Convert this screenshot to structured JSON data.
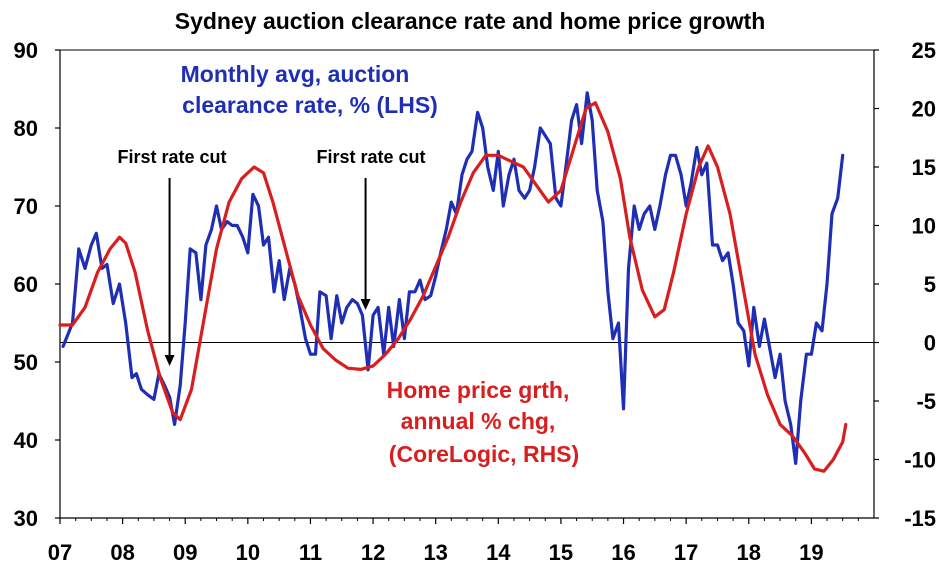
{
  "chart_data": {
    "type": "line",
    "title": "Sydney auction clearance rate and home price growth",
    "x_ticks": [
      "07",
      "08",
      "09",
      "10",
      "11",
      "12",
      "13",
      "14",
      "15",
      "16",
      "17",
      "18",
      "19"
    ],
    "y_left": {
      "lim": [
        30,
        90
      ],
      "ticks": [
        30,
        40,
        50,
        60,
        70,
        80,
        90
      ]
    },
    "y_right": {
      "lim": [
        -15,
        25
      ],
      "ticks": [
        "-15",
        "-10",
        "-5",
        "0",
        "5",
        "10",
        "15",
        "20",
        "25"
      ]
    },
    "reference_line_right_axis": 0,
    "series": [
      {
        "name": "Monthly avg, auction clearance rate, % (LHS)",
        "axis": "left",
        "color": "#1f2fb5",
        "points": [
          [
            2007.05,
            52
          ],
          [
            2007.2,
            55
          ],
          [
            2007.3,
            64.5
          ],
          [
            2007.4,
            62
          ],
          [
            2007.5,
            65
          ],
          [
            2007.58,
            66.5
          ],
          [
            2007.67,
            62
          ],
          [
            2007.75,
            62.5
          ],
          [
            2007.85,
            57.5
          ],
          [
            2007.95,
            60
          ],
          [
            2008.05,
            55
          ],
          [
            2008.15,
            48
          ],
          [
            2008.22,
            48.5
          ],
          [
            2008.3,
            46.5
          ],
          [
            2008.4,
            45.8
          ],
          [
            2008.5,
            45.2
          ],
          [
            2008.58,
            48.5
          ],
          [
            2008.67,
            47
          ],
          [
            2008.75,
            45.5
          ],
          [
            2008.83,
            42
          ],
          [
            2008.92,
            47
          ],
          [
            2009.0,
            55
          ],
          [
            2009.08,
            64.5
          ],
          [
            2009.17,
            64
          ],
          [
            2009.25,
            58
          ],
          [
            2009.33,
            65
          ],
          [
            2009.42,
            67
          ],
          [
            2009.5,
            70
          ],
          [
            2009.58,
            67
          ],
          [
            2009.67,
            68
          ],
          [
            2009.75,
            67.5
          ],
          [
            2009.83,
            67.5
          ],
          [
            2009.92,
            66
          ],
          [
            2010.0,
            64
          ],
          [
            2010.08,
            71.5
          ],
          [
            2010.17,
            70
          ],
          [
            2010.25,
            65
          ],
          [
            2010.33,
            66
          ],
          [
            2010.42,
            59
          ],
          [
            2010.5,
            63
          ],
          [
            2010.58,
            58
          ],
          [
            2010.67,
            62
          ],
          [
            2010.75,
            60
          ],
          [
            2010.83,
            57
          ],
          [
            2010.92,
            53
          ],
          [
            2011.0,
            51
          ],
          [
            2011.08,
            51
          ],
          [
            2011.15,
            59
          ],
          [
            2011.25,
            58.5
          ],
          [
            2011.33,
            53
          ],
          [
            2011.42,
            58.5
          ],
          [
            2011.5,
            55
          ],
          [
            2011.58,
            57
          ],
          [
            2011.67,
            58
          ],
          [
            2011.75,
            57.5
          ],
          [
            2011.83,
            56
          ],
          [
            2011.92,
            49
          ],
          [
            2012.0,
            56
          ],
          [
            2012.08,
            57
          ],
          [
            2012.17,
            51
          ],
          [
            2012.25,
            57
          ],
          [
            2012.33,
            52
          ],
          [
            2012.42,
            58
          ],
          [
            2012.5,
            53
          ],
          [
            2012.58,
            59
          ],
          [
            2012.67,
            59
          ],
          [
            2012.75,
            60.5
          ],
          [
            2012.83,
            58
          ],
          [
            2012.92,
            58.5
          ],
          [
            2013.0,
            61
          ],
          [
            2013.08,
            64
          ],
          [
            2013.17,
            67
          ],
          [
            2013.25,
            70.5
          ],
          [
            2013.33,
            69
          ],
          [
            2013.42,
            74
          ],
          [
            2013.5,
            76
          ],
          [
            2013.58,
            77
          ],
          [
            2013.67,
            82
          ],
          [
            2013.75,
            80
          ],
          [
            2013.83,
            75
          ],
          [
            2013.92,
            72
          ],
          [
            2014.0,
            77
          ],
          [
            2014.08,
            70
          ],
          [
            2014.17,
            74
          ],
          [
            2014.25,
            76
          ],
          [
            2014.33,
            72
          ],
          [
            2014.42,
            71
          ],
          [
            2014.5,
            72
          ],
          [
            2014.58,
            75
          ],
          [
            2014.67,
            80
          ],
          [
            2014.75,
            79
          ],
          [
            2014.83,
            78
          ],
          [
            2014.92,
            71
          ],
          [
            2015.0,
            70
          ],
          [
            2015.08,
            75
          ],
          [
            2015.17,
            81
          ],
          [
            2015.25,
            83
          ],
          [
            2015.33,
            78
          ],
          [
            2015.42,
            84.5
          ],
          [
            2015.5,
            81
          ],
          [
            2015.58,
            72
          ],
          [
            2015.67,
            68
          ],
          [
            2015.75,
            59
          ],
          [
            2015.83,
            53
          ],
          [
            2015.92,
            55
          ],
          [
            2016.0,
            44
          ],
          [
            2016.08,
            62
          ],
          [
            2016.17,
            70
          ],
          [
            2016.25,
            67
          ],
          [
            2016.33,
            69
          ],
          [
            2016.42,
            70
          ],
          [
            2016.5,
            67
          ],
          [
            2016.58,
            70
          ],
          [
            2016.67,
            74
          ],
          [
            2016.75,
            76.5
          ],
          [
            2016.83,
            76.5
          ],
          [
            2016.92,
            74
          ],
          [
            2017.0,
            70
          ],
          [
            2017.08,
            73
          ],
          [
            2017.17,
            77.5
          ],
          [
            2017.25,
            74
          ],
          [
            2017.33,
            75.5
          ],
          [
            2017.42,
            65
          ],
          [
            2017.5,
            65
          ],
          [
            2017.58,
            63
          ],
          [
            2017.67,
            64
          ],
          [
            2017.75,
            60
          ],
          [
            2017.83,
            55
          ],
          [
            2017.92,
            54
          ],
          [
            2018.0,
            49.5
          ],
          [
            2018.08,
            57
          ],
          [
            2018.17,
            52
          ],
          [
            2018.25,
            55.5
          ],
          [
            2018.33,
            52
          ],
          [
            2018.42,
            48
          ],
          [
            2018.5,
            51
          ],
          [
            2018.58,
            45
          ],
          [
            2018.67,
            42
          ],
          [
            2018.75,
            37
          ],
          [
            2018.83,
            45
          ],
          [
            2018.92,
            51
          ],
          [
            2019.0,
            51
          ],
          [
            2019.08,
            55
          ],
          [
            2019.17,
            54
          ],
          [
            2019.25,
            60
          ],
          [
            2019.33,
            69
          ],
          [
            2019.42,
            71
          ],
          [
            2019.5,
            76.5
          ]
        ]
      },
      {
        "name": "Home price grth, annual % chg, (CoreLogic, RHS)",
        "axis": "right",
        "color": "#d81e1e",
        "points": [
          [
            2007.0,
            1.5
          ],
          [
            2007.2,
            1.5
          ],
          [
            2007.4,
            3
          ],
          [
            2007.6,
            6
          ],
          [
            2007.8,
            8
          ],
          [
            2007.95,
            9
          ],
          [
            2008.05,
            8.5
          ],
          [
            2008.2,
            6
          ],
          [
            2008.4,
            1
          ],
          [
            2008.6,
            -3
          ],
          [
            2008.8,
            -6
          ],
          [
            2008.92,
            -6.6
          ],
          [
            2009.1,
            -4
          ],
          [
            2009.3,
            2
          ],
          [
            2009.5,
            8
          ],
          [
            2009.7,
            12
          ],
          [
            2009.9,
            14
          ],
          [
            2010.1,
            15
          ],
          [
            2010.25,
            14.5
          ],
          [
            2010.4,
            12
          ],
          [
            2010.6,
            8
          ],
          [
            2010.8,
            4
          ],
          [
            2011.0,
            1.5
          ],
          [
            2011.2,
            -0.5
          ],
          [
            2011.4,
            -1.5
          ],
          [
            2011.6,
            -2.2
          ],
          [
            2011.8,
            -2.3
          ],
          [
            2012.0,
            -2
          ],
          [
            2012.2,
            -1
          ],
          [
            2012.4,
            0.3
          ],
          [
            2012.6,
            2
          ],
          [
            2012.8,
            4
          ],
          [
            2013.0,
            6.5
          ],
          [
            2013.2,
            9
          ],
          [
            2013.4,
            12
          ],
          [
            2013.6,
            14.5
          ],
          [
            2013.8,
            16
          ],
          [
            2014.0,
            16
          ],
          [
            2014.2,
            15.5
          ],
          [
            2014.4,
            15
          ],
          [
            2014.6,
            13.5
          ],
          [
            2014.8,
            12
          ],
          [
            2015.0,
            13
          ],
          [
            2015.2,
            16.5
          ],
          [
            2015.4,
            20
          ],
          [
            2015.55,
            20.5
          ],
          [
            2015.75,
            18
          ],
          [
            2015.95,
            14
          ],
          [
            2016.1,
            9
          ],
          [
            2016.3,
            4.5
          ],
          [
            2016.5,
            2.2
          ],
          [
            2016.65,
            2.8
          ],
          [
            2016.8,
            6
          ],
          [
            2017.0,
            11
          ],
          [
            2017.2,
            15
          ],
          [
            2017.35,
            16.8
          ],
          [
            2017.5,
            15
          ],
          [
            2017.7,
            11
          ],
          [
            2017.9,
            5
          ],
          [
            2018.1,
            -1
          ],
          [
            2018.3,
            -4.5
          ],
          [
            2018.5,
            -7
          ],
          [
            2018.7,
            -8
          ],
          [
            2018.9,
            -9.5
          ],
          [
            2019.05,
            -10.8
          ],
          [
            2019.2,
            -11
          ],
          [
            2019.35,
            -10
          ],
          [
            2019.5,
            -8.5
          ],
          [
            2019.55,
            -7
          ]
        ]
      }
    ],
    "annotations": [
      {
        "id": "blue-label",
        "lines": [
          "Monthly avg, auction",
          "clearance rate, % (LHS)"
        ]
      },
      {
        "id": "red-label",
        "lines": [
          "Home price grth,",
          "annual % chg,",
          "(CoreLogic, RHS)"
        ]
      },
      {
        "id": "rate-cut-1",
        "text": "First rate cut",
        "x": 2008.75
      },
      {
        "id": "rate-cut-2",
        "text": "First rate cut",
        "x": 2011.88
      }
    ]
  }
}
